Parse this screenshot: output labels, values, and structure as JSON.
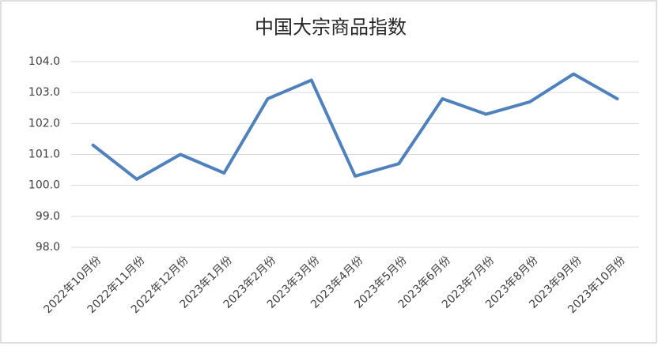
{
  "chart_data": {
    "type": "line",
    "title": "中国大宗商品指数",
    "categories": [
      "2022年10月份",
      "2022年11月份",
      "2022年12月份",
      "2023年1月份",
      "2023年2月份",
      "2023年3月份",
      "2023年4月份",
      "2023年5月份",
      "2023年6月份",
      "2023年7月份",
      "2023年8月份",
      "2023年9月份",
      "2023年10月份"
    ],
    "values": [
      101.3,
      100.2,
      101.0,
      100.4,
      102.8,
      103.4,
      100.3,
      100.7,
      102.8,
      102.3,
      102.7,
      103.6,
      102.8
    ],
    "color": "#4f81bd",
    "ylim": [
      98,
      104
    ],
    "yticks": [
      {
        "value": 98,
        "label": "98.0"
      },
      {
        "value": 99,
        "label": "99.0"
      },
      {
        "value": 100,
        "label": "100.0"
      },
      {
        "value": 101,
        "label": "101.0"
      },
      {
        "value": 102,
        "label": "102.0"
      },
      {
        "value": 103,
        "label": "103.0"
      },
      {
        "value": 104,
        "label": "104.0"
      }
    ],
    "grid": true
  }
}
